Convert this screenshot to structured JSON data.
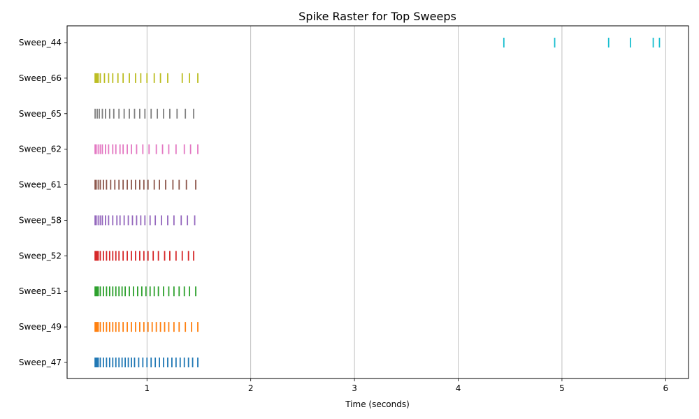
{
  "chart_data": {
    "type": "raster",
    "title": "Spike Raster for Top Sweeps",
    "xlabel": "Time (seconds)",
    "ylabel": "",
    "xlim": [
      0.23,
      6.22
    ],
    "xticks": [
      1,
      2,
      3,
      4,
      5,
      6
    ],
    "grid": "x-major",
    "legend": "none",
    "series": [
      {
        "name": "Sweep_47",
        "color": "#1f77b4",
        "spikes": [
          0.5,
          0.51,
          0.52,
          0.53,
          0.55,
          0.58,
          0.61,
          0.64,
          0.67,
          0.7,
          0.73,
          0.76,
          0.79,
          0.82,
          0.85,
          0.88,
          0.92,
          0.96,
          1.0,
          1.04,
          1.08,
          1.12,
          1.16,
          1.2,
          1.24,
          1.28,
          1.32,
          1.36,
          1.4,
          1.44,
          1.49
        ]
      },
      {
        "name": "Sweep_49",
        "color": "#ff7f0e",
        "spikes": [
          0.5,
          0.51,
          0.52,
          0.53,
          0.55,
          0.58,
          0.61,
          0.64,
          0.67,
          0.7,
          0.73,
          0.77,
          0.81,
          0.85,
          0.89,
          0.93,
          0.97,
          1.01,
          1.05,
          1.09,
          1.13,
          1.17,
          1.21,
          1.26,
          1.31,
          1.37,
          1.43,
          1.49
        ]
      },
      {
        "name": "Sweep_51",
        "color": "#2ca02c",
        "spikes": [
          0.5,
          0.51,
          0.52,
          0.53,
          0.55,
          0.58,
          0.61,
          0.64,
          0.67,
          0.7,
          0.73,
          0.76,
          0.79,
          0.83,
          0.87,
          0.91,
          0.95,
          0.99,
          1.03,
          1.07,
          1.11,
          1.16,
          1.21,
          1.26,
          1.31,
          1.36,
          1.41,
          1.47
        ]
      },
      {
        "name": "Sweep_52",
        "color": "#d62728",
        "spikes": [
          0.5,
          0.51,
          0.52,
          0.53,
          0.55,
          0.58,
          0.61,
          0.64,
          0.67,
          0.7,
          0.73,
          0.77,
          0.81,
          0.85,
          0.89,
          0.93,
          0.97,
          1.01,
          1.06,
          1.11,
          1.17,
          1.22,
          1.28,
          1.34,
          1.4,
          1.45
        ]
      },
      {
        "name": "Sweep_58",
        "color": "#9467bd",
        "spikes": [
          0.5,
          0.51,
          0.53,
          0.55,
          0.57,
          0.6,
          0.63,
          0.67,
          0.71,
          0.74,
          0.78,
          0.82,
          0.86,
          0.9,
          0.94,
          0.98,
          1.03,
          1.08,
          1.14,
          1.2,
          1.26,
          1.33,
          1.39,
          1.46
        ]
      },
      {
        "name": "Sweep_61",
        "color": "#8c564b",
        "spikes": [
          0.5,
          0.51,
          0.53,
          0.55,
          0.58,
          0.61,
          0.65,
          0.69,
          0.73,
          0.77,
          0.81,
          0.85,
          0.89,
          0.93,
          0.97,
          1.01,
          1.07,
          1.12,
          1.18,
          1.25,
          1.31,
          1.38,
          1.47
        ]
      },
      {
        "name": "Sweep_62",
        "color": "#e377c2",
        "spikes": [
          0.5,
          0.51,
          0.53,
          0.55,
          0.57,
          0.6,
          0.63,
          0.67,
          0.7,
          0.74,
          0.77,
          0.81,
          0.85,
          0.9,
          0.96,
          1.02,
          1.09,
          1.15,
          1.21,
          1.28,
          1.36,
          1.42,
          1.49
        ]
      },
      {
        "name": "Sweep_65",
        "color": "#7f7f7f",
        "spikes": [
          0.5,
          0.52,
          0.54,
          0.57,
          0.6,
          0.64,
          0.68,
          0.73,
          0.78,
          0.83,
          0.88,
          0.93,
          0.98,
          1.04,
          1.1,
          1.16,
          1.22,
          1.29,
          1.37,
          1.45
        ]
      },
      {
        "name": "Sweep_66",
        "color": "#bcbd22",
        "spikes": [
          0.5,
          0.51,
          0.52,
          0.53,
          0.55,
          0.59,
          0.63,
          0.67,
          0.72,
          0.77,
          0.83,
          0.89,
          0.94,
          1.0,
          1.07,
          1.13,
          1.2,
          1.34,
          1.41,
          1.49
        ]
      },
      {
        "name": "Sweep_44",
        "color": "#17becf",
        "spikes": [
          4.44,
          4.93,
          5.45,
          5.66,
          5.88,
          5.94
        ]
      }
    ]
  }
}
